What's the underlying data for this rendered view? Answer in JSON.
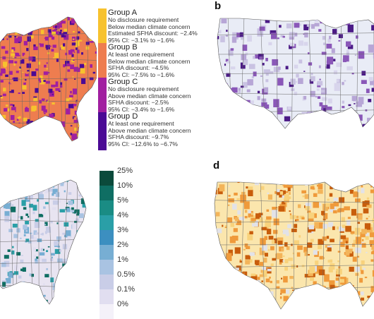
{
  "panels": {
    "a": {
      "letter": ""
    },
    "b": {
      "letter": "b"
    },
    "c": {
      "letter": ""
    },
    "d": {
      "letter": "d"
    }
  },
  "legend_groups": [
    {
      "title": "Group A",
      "lines": [
        "No disclosure requirement",
        "Below median climate concern",
        "Estimated SFHA discount: −2.4%",
        "95% CI: −3.1% to −1.6%"
      ],
      "color": "#f7c22e"
    },
    {
      "title": "Group B",
      "lines": [
        "At least one requirement",
        "Below median climate concern",
        "SFHA discount: −4.5%",
        "95% CI: −7.5% to −1.6%"
      ],
      "color": "#ee7d4f"
    },
    {
      "title": "Group C",
      "lines": [
        "No disclosure requirement",
        "Above median climate concern",
        "SFHA discount: −2.5%",
        "95% CI: −3.4% to −1.6%"
      ],
      "color": "#a11fa0"
    },
    {
      "title": "Group D",
      "lines": [
        "At least one requirement",
        "Above median climate concern",
        "SFHA discount: −9.7%",
        "95% CI: −12.6% to −6.7%"
      ],
      "color": "#4b0a95"
    }
  ],
  "color_scale": [
    {
      "label": "25%",
      "color": "#0b4a3b"
    },
    {
      "label": "10%",
      "color": "#0f6e63"
    },
    {
      "label": "5%",
      "color": "#1a8c84"
    },
    {
      "label": "4%",
      "color": "#2a9fa7"
    },
    {
      "label": "3%",
      "color": "#3c8fc0"
    },
    {
      "label": "2%",
      "color": "#77aed3"
    },
    {
      "label": "1%",
      "color": "#a9c3e2"
    },
    {
      "label": "0.5%",
      "color": "#c9cde7"
    },
    {
      "label": "0.1%",
      "color": "#e1def0"
    },
    {
      "label": "0%",
      "color": "#f4f1f9"
    }
  ],
  "map_colors": {
    "a_base": "#ee7d4f",
    "a_accent": "#a11fa0",
    "a_dark": "#4b0a95",
    "a_yellow": "#f7c22e",
    "b_base": "#e9ecf6",
    "b_accent": "#8a57b8",
    "b_dark": "#4b1a86",
    "c_base": "#e8e4f1",
    "c_accent": "#2a9fa7",
    "c_dark": "#0f6e63",
    "d_base": "#fbe6ad",
    "d_accent": "#ef9a3b",
    "d_dark": "#c85d0c"
  }
}
